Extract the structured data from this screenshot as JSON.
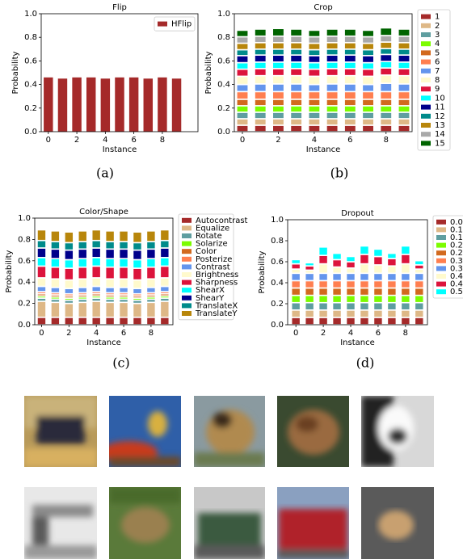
{
  "chart_data": [
    {
      "type": "bar",
      "title": "Flip",
      "xlabel": "Instance",
      "ylabel": "Probability",
      "x": [
        0,
        1,
        2,
        3,
        4,
        5,
        6,
        7,
        8,
        9
      ],
      "xlim": [
        -0.5,
        10.5
      ],
      "xticks": [
        0,
        2,
        4,
        6,
        8
      ],
      "ylim": [
        0,
        1
      ],
      "yticks": [
        {
          "value": 0,
          "label": "0.0"
        },
        0.2,
        0.4,
        0.6,
        0.8,
        {
          "value": 1,
          "label": "1.0"
        }
      ],
      "legend": "upper right",
      "series": [
        {
          "name": "HFlip",
          "color": "#a52a2a",
          "values": [
            0.46,
            0.45,
            0.46,
            0.46,
            0.45,
            0.46,
            0.46,
            0.45,
            0.46,
            0.45
          ]
        }
      ]
    },
    {
      "type": "bar",
      "stacked": true,
      "title": "Crop",
      "xlabel": "Instance",
      "ylabel": "Probability",
      "x": [
        0,
        1,
        2,
        3,
        4,
        5,
        6,
        7,
        8,
        9
      ],
      "xlim": [
        -0.45,
        9.45
      ],
      "xticks": [
        0,
        2,
        4,
        6,
        8
      ],
      "ylim": [
        0,
        1
      ],
      "yticks": [
        {
          "value": 0,
          "label": "0.0"
        },
        0.2,
        0.4,
        0.6,
        0.8,
        {
          "value": 1,
          "label": "1.0"
        }
      ],
      "legend": "right",
      "series": [
        {
          "name": "1",
          "color": "#a52a2a",
          "values": [
            0.055,
            0.055,
            0.055,
            0.055,
            0.055,
            0.055,
            0.055,
            0.055,
            0.055,
            0.055
          ]
        },
        {
          "name": "2",
          "color": "#deb887",
          "values": [
            0.055,
            0.055,
            0.055,
            0.055,
            0.055,
            0.055,
            0.055,
            0.055,
            0.055,
            0.055
          ]
        },
        {
          "name": "3",
          "color": "#5f9ea0",
          "values": [
            0.055,
            0.055,
            0.055,
            0.055,
            0.055,
            0.055,
            0.055,
            0.055,
            0.055,
            0.055
          ]
        },
        {
          "name": "4",
          "color": "#7cfc00",
          "values": [
            0.055,
            0.055,
            0.055,
            0.055,
            0.055,
            0.055,
            0.055,
            0.055,
            0.055,
            0.055
          ]
        },
        {
          "name": "5",
          "color": "#d2691e",
          "values": [
            0.055,
            0.055,
            0.055,
            0.055,
            0.055,
            0.055,
            0.055,
            0.055,
            0.055,
            0.055
          ]
        },
        {
          "name": "6",
          "color": "#ff7f50",
          "values": [
            0.065,
            0.065,
            0.065,
            0.065,
            0.065,
            0.065,
            0.065,
            0.065,
            0.065,
            0.065
          ]
        },
        {
          "name": "7",
          "color": "#6495ed",
          "values": [
            0.06,
            0.065,
            0.065,
            0.065,
            0.06,
            0.065,
            0.065,
            0.06,
            0.07,
            0.065
          ]
        },
        {
          "name": "8",
          "color": "#fffacd",
          "values": [
            0.07,
            0.07,
            0.07,
            0.07,
            0.07,
            0.07,
            0.07,
            0.07,
            0.07,
            0.07
          ]
        },
        {
          "name": "9",
          "color": "#dc143c",
          "values": [
            0.06,
            0.06,
            0.06,
            0.06,
            0.06,
            0.06,
            0.06,
            0.06,
            0.06,
            0.06
          ]
        },
        {
          "name": "10",
          "color": "#00ffff",
          "values": [
            0.055,
            0.055,
            0.055,
            0.055,
            0.055,
            0.055,
            0.055,
            0.055,
            0.055,
            0.055
          ]
        },
        {
          "name": "11",
          "color": "#00008b",
          "values": [
            0.06,
            0.06,
            0.06,
            0.06,
            0.06,
            0.06,
            0.06,
            0.06,
            0.06,
            0.06
          ]
        },
        {
          "name": "12",
          "color": "#008b8b",
          "values": [
            0.05,
            0.05,
            0.05,
            0.05,
            0.05,
            0.05,
            0.05,
            0.05,
            0.05,
            0.05
          ]
        },
        {
          "name": "13",
          "color": "#b8860b",
          "values": [
            0.055,
            0.055,
            0.055,
            0.055,
            0.055,
            0.055,
            0.055,
            0.055,
            0.055,
            0.055
          ]
        },
        {
          "name": "14",
          "color": "#a9a9a9",
          "values": [
            0.055,
            0.055,
            0.055,
            0.055,
            0.055,
            0.055,
            0.055,
            0.055,
            0.055,
            0.055
          ]
        },
        {
          "name": "15",
          "color": "#006400",
          "values": [
            0.055,
            0.06,
            0.065,
            0.06,
            0.055,
            0.06,
            0.06,
            0.055,
            0.065,
            0.06
          ]
        }
      ]
    },
    {
      "type": "bar",
      "stacked": true,
      "title": "Color/Shape",
      "xlabel": "Instance",
      "ylabel": "Probability",
      "x": [
        0,
        1,
        2,
        3,
        4,
        5,
        6,
        7,
        8,
        9
      ],
      "xlim": [
        -0.5,
        9.6
      ],
      "xticks": [
        0,
        2,
        4,
        6,
        8
      ],
      "ylim": [
        0,
        1
      ],
      "yticks": [
        {
          "value": 0,
          "label": "0.0"
        },
        0.2,
        0.4,
        0.6,
        0.8,
        {
          "value": 1,
          "label": "1.0"
        }
      ],
      "legend": "right",
      "series": [
        {
          "name": "Autocontrast",
          "color": "#a52a2a",
          "values": [
            0.07,
            0.07,
            0.07,
            0.07,
            0.07,
            0.07,
            0.07,
            0.07,
            0.07,
            0.07
          ]
        },
        {
          "name": "Equalize",
          "color": "#deb887",
          "values": [
            0.15,
            0.14,
            0.13,
            0.14,
            0.15,
            0.14,
            0.14,
            0.13,
            0.14,
            0.15
          ]
        },
        {
          "name": "Rotate",
          "color": "#5f9ea0",
          "values": [
            0.03,
            0.03,
            0.03,
            0.03,
            0.03,
            0.03,
            0.03,
            0.03,
            0.03,
            0.03
          ]
        },
        {
          "name": "Solarize",
          "color": "#7cfc00",
          "values": [
            0.02,
            0.02,
            0.02,
            0.02,
            0.02,
            0.02,
            0.02,
            0.02,
            0.02,
            0.02
          ]
        },
        {
          "name": "Color",
          "color": "#d2691e",
          "values": [
            0.02,
            0.02,
            0.02,
            0.02,
            0.02,
            0.02,
            0.02,
            0.02,
            0.02,
            0.02
          ]
        },
        {
          "name": "Posterize",
          "color": "#ff7f50",
          "values": [
            0.02,
            0.02,
            0.02,
            0.02,
            0.02,
            0.02,
            0.02,
            0.02,
            0.02,
            0.02
          ]
        },
        {
          "name": "Contrast",
          "color": "#6495ed",
          "values": [
            0.05,
            0.05,
            0.05,
            0.05,
            0.05,
            0.05,
            0.05,
            0.05,
            0.05,
            0.05
          ]
        },
        {
          "name": "Brightness",
          "color": "#fffacd",
          "values": [
            0.08,
            0.08,
            0.08,
            0.08,
            0.08,
            0.08,
            0.08,
            0.08,
            0.08,
            0.08
          ]
        },
        {
          "name": "Sharpness",
          "color": "#dc143c",
          "values": [
            0.11,
            0.11,
            0.11,
            0.11,
            0.11,
            0.11,
            0.11,
            0.11,
            0.11,
            0.11
          ]
        },
        {
          "name": "ShearX",
          "color": "#00ffff",
          "values": [
            0.08,
            0.08,
            0.08,
            0.08,
            0.08,
            0.08,
            0.08,
            0.08,
            0.08,
            0.08
          ]
        },
        {
          "name": "ShearY",
          "color": "#00008b",
          "values": [
            0.09,
            0.09,
            0.09,
            0.09,
            0.09,
            0.09,
            0.09,
            0.09,
            0.09,
            0.09
          ]
        },
        {
          "name": "TranslateX",
          "color": "#008b8b",
          "values": [
            0.07,
            0.07,
            0.07,
            0.07,
            0.07,
            0.07,
            0.07,
            0.07,
            0.07,
            0.07
          ]
        },
        {
          "name": "TranslateY",
          "color": "#b8860b",
          "values": [
            0.1,
            0.1,
            0.1,
            0.1,
            0.1,
            0.1,
            0.1,
            0.1,
            0.1,
            0.1
          ]
        }
      ]
    },
    {
      "type": "bar",
      "stacked": true,
      "title": "Dropout",
      "xlabel": "Instance",
      "ylabel": "Probability",
      "x": [
        0,
        1,
        2,
        3,
        4,
        5,
        6,
        7,
        8,
        9
      ],
      "xlim": [
        -0.6,
        9.6
      ],
      "xticks": [
        0,
        2,
        4,
        6,
        8
      ],
      "ylim": [
        0,
        1
      ],
      "yticks": [
        {
          "value": 0,
          "label": "0.0"
        },
        0.2,
        0.4,
        0.6,
        0.8,
        {
          "value": 1,
          "label": "1.0"
        }
      ],
      "legend": "right",
      "series": [
        {
          "name": "0.05",
          "color": "#a52a2a",
          "values": [
            0.07,
            0.07,
            0.07,
            0.07,
            0.07,
            0.07,
            0.07,
            0.07,
            0.07,
            0.07
          ]
        },
        {
          "name": "0.1",
          "color": "#deb887",
          "values": [
            0.07,
            0.07,
            0.07,
            0.07,
            0.07,
            0.07,
            0.07,
            0.07,
            0.07,
            0.07
          ]
        },
        {
          "name": "0.15",
          "color": "#5f9ea0",
          "values": [
            0.07,
            0.07,
            0.07,
            0.07,
            0.07,
            0.07,
            0.07,
            0.07,
            0.07,
            0.07
          ]
        },
        {
          "name": "0.2",
          "color": "#7cfc00",
          "values": [
            0.07,
            0.07,
            0.07,
            0.07,
            0.07,
            0.07,
            0.07,
            0.07,
            0.07,
            0.07
          ]
        },
        {
          "name": "0.25",
          "color": "#d2691e",
          "values": [
            0.07,
            0.07,
            0.07,
            0.07,
            0.07,
            0.07,
            0.07,
            0.07,
            0.07,
            0.07
          ]
        },
        {
          "name": "0.3",
          "color": "#ff7f50",
          "values": [
            0.07,
            0.07,
            0.07,
            0.07,
            0.07,
            0.07,
            0.07,
            0.07,
            0.07,
            0.07
          ]
        },
        {
          "name": "0.35",
          "color": "#6495ed",
          "values": [
            0.07,
            0.07,
            0.07,
            0.07,
            0.07,
            0.07,
            0.07,
            0.07,
            0.07,
            0.07
          ]
        },
        {
          "name": "0.4",
          "color": "#fffacd",
          "values": [
            0.04,
            0.03,
            0.09,
            0.06,
            0.05,
            0.09,
            0.08,
            0.07,
            0.09,
            0.04
          ]
        },
        {
          "name": "0.45",
          "color": "#dc143c",
          "values": [
            0.05,
            0.04,
            0.08,
            0.07,
            0.06,
            0.09,
            0.08,
            0.07,
            0.09,
            0.04
          ]
        },
        {
          "name": "0.5",
          "color": "#00ffff",
          "values": [
            0.04,
            0.03,
            0.08,
            0.06,
            0.05,
            0.08,
            0.07,
            0.05,
            0.08,
            0.04
          ]
        }
      ]
    }
  ],
  "captions": [
    "(a)",
    "(b)",
    "(c)",
    "(d)"
  ]
}
